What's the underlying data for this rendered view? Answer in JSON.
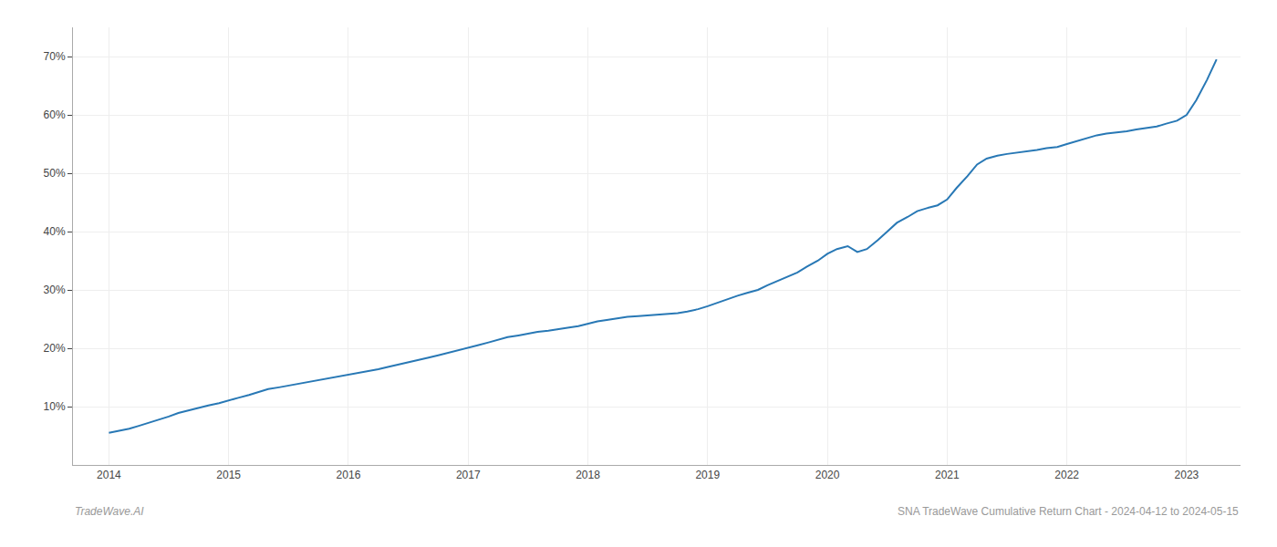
{
  "chart_data": {
    "type": "line",
    "x": [
      2014.0,
      2014.08,
      2014.17,
      2014.25,
      2014.33,
      2014.42,
      2014.5,
      2014.58,
      2014.67,
      2014.75,
      2014.83,
      2014.92,
      2015.0,
      2015.08,
      2015.17,
      2015.25,
      2015.33,
      2015.42,
      2015.5,
      2015.58,
      2015.67,
      2015.75,
      2015.83,
      2015.92,
      2016.0,
      2016.08,
      2016.17,
      2016.25,
      2016.33,
      2016.42,
      2016.5,
      2016.58,
      2016.67,
      2016.75,
      2016.83,
      2016.92,
      2017.0,
      2017.08,
      2017.17,
      2017.25,
      2017.33,
      2017.42,
      2017.5,
      2017.58,
      2017.67,
      2017.75,
      2017.83,
      2017.92,
      2018.0,
      2018.08,
      2018.17,
      2018.25,
      2018.33,
      2018.42,
      2018.5,
      2018.58,
      2018.67,
      2018.75,
      2018.83,
      2018.92,
      2019.0,
      2019.08,
      2019.17,
      2019.25,
      2019.33,
      2019.42,
      2019.5,
      2019.58,
      2019.67,
      2019.75,
      2019.83,
      2019.92,
      2020.0,
      2020.08,
      2020.17,
      2020.25,
      2020.33,
      2020.42,
      2020.5,
      2020.58,
      2020.67,
      2020.75,
      2020.83,
      2020.92,
      2021.0,
      2021.08,
      2021.17,
      2021.25,
      2021.33,
      2021.42,
      2021.5,
      2021.58,
      2021.67,
      2021.75,
      2021.83,
      2021.92,
      2022.0,
      2022.08,
      2022.17,
      2022.25,
      2022.33,
      2022.42,
      2022.5,
      2022.58,
      2022.67,
      2022.75,
      2022.83,
      2022.92,
      2023.0,
      2023.08,
      2023.17,
      2023.25
    ],
    "values": [
      5.5,
      5.8,
      6.2,
      6.7,
      7.2,
      7.8,
      8.3,
      8.9,
      9.4,
      9.8,
      10.2,
      10.6,
      11.0,
      11.5,
      12.0,
      12.5,
      13.0,
      13.3,
      13.6,
      13.9,
      14.2,
      14.5,
      14.8,
      15.1,
      15.5,
      15.8,
      16.1,
      16.4,
      16.8,
      17.2,
      17.6,
      18.0,
      18.4,
      18.8,
      19.2,
      19.6,
      20.0,
      20.5,
      21.0,
      21.5,
      21.9,
      22.2,
      22.5,
      22.8,
      23.0,
      23.2,
      23.5,
      23.8,
      24.2,
      24.6,
      24.9,
      25.2,
      25.4,
      25.5,
      25.6,
      25.7,
      25.8,
      26.0,
      26.3,
      26.7,
      27.2,
      27.8,
      28.5,
      29.0,
      29.5,
      30.0,
      30.8,
      31.5,
      32.2,
      33.0,
      34.0,
      35.0,
      36.2,
      37.0,
      37.5,
      36.5,
      37.0,
      38.5,
      40.0,
      41.5,
      42.5,
      43.5,
      44.0,
      44.5,
      45.5,
      47.5,
      49.5,
      51.5,
      52.5,
      53.0,
      53.3,
      53.5,
      53.8,
      54.0,
      54.3,
      54.5,
      55.0,
      55.5,
      56.0,
      56.5,
      56.8,
      57.0,
      57.2,
      57.5,
      57.8,
      58.0,
      58.5,
      59.0,
      60.0,
      62.5,
      66.0,
      69.5
    ],
    "color": "#2878b5",
    "xlim": [
      2013.7,
      2023.45
    ],
    "xticks": [
      2014,
      2015,
      2016,
      2017,
      2018,
      2019,
      2020,
      2021,
      2022,
      2023
    ],
    "ylim": [
      0,
      75
    ],
    "yticks": [
      {
        "value": 10,
        "label": "10%"
      },
      {
        "value": 20,
        "label": "20%"
      },
      {
        "value": 30,
        "label": "30%"
      },
      {
        "value": 40,
        "label": "40%"
      },
      {
        "value": 50,
        "label": "50%"
      },
      {
        "value": 60,
        "label": "60%"
      },
      {
        "value": 70,
        "label": "70%"
      }
    ],
    "grid": true,
    "annotations": [
      "TradeWave.AI",
      "SNA TradeWave Cumulative Return Chart - 2024-04-12 to 2024-05-15"
    ]
  }
}
